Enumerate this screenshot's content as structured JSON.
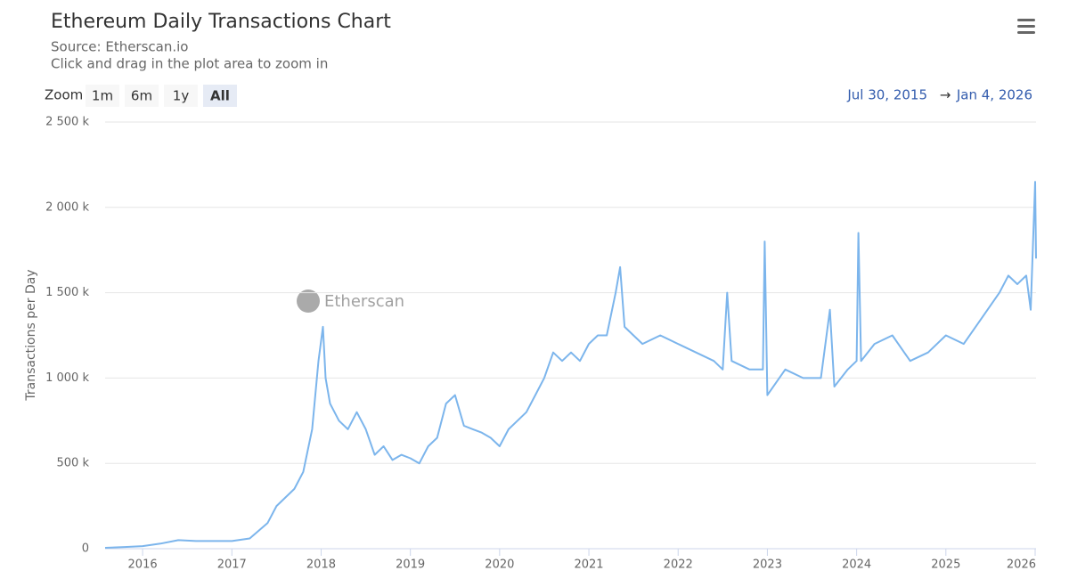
{
  "chart_data": {
    "type": "line",
    "title": "Ethereum Daily Transactions Chart",
    "subtitle": [
      "Source: Etherscan.io",
      "Click and drag in the plot area to zoom in"
    ],
    "zoom_label": "Zoom",
    "zoom_buttons": [
      "1m",
      "6m",
      "1y",
      "All"
    ],
    "range_from": "Jul 30, 2015",
    "range_separator": "→",
    "range_to": "Jan 4, 2026",
    "watermark": "Etherscan",
    "y_label": "Transactions per Day",
    "color": "#7cb5ec",
    "grid": true,
    "x": [
      2015.58,
      2015.8,
      2016.0,
      2016.2,
      2016.4,
      2016.6,
      2016.8,
      2017.0,
      2017.2,
      2017.4,
      2017.5,
      2017.6,
      2017.7,
      2017.8,
      2017.9,
      2017.97,
      2018.02,
      2018.05,
      2018.1,
      2018.2,
      2018.3,
      2018.4,
      2018.5,
      2018.6,
      2018.7,
      2018.8,
      2018.9,
      2019.0,
      2019.1,
      2019.2,
      2019.3,
      2019.4,
      2019.5,
      2019.6,
      2019.7,
      2019.8,
      2019.9,
      2020.0,
      2020.1,
      2020.2,
      2020.3,
      2020.4,
      2020.5,
      2020.6,
      2020.7,
      2020.8,
      2020.9,
      2021.0,
      2021.1,
      2021.2,
      2021.3,
      2021.35,
      2021.4,
      2021.5,
      2021.6,
      2021.8,
      2022.0,
      2022.2,
      2022.4,
      2022.5,
      2022.55,
      2022.6,
      2022.8,
      2022.95,
      2022.97,
      2023.0,
      2023.2,
      2023.4,
      2023.6,
      2023.7,
      2023.75,
      2023.9,
      2024.0,
      2024.02,
      2024.05,
      2024.2,
      2024.4,
      2024.6,
      2024.8,
      2025.0,
      2025.2,
      2025.4,
      2025.6,
      2025.7,
      2025.8,
      2025.9,
      2025.95,
      2026.0,
      2026.01
    ],
    "values": [
      5000,
      10000,
      15000,
      30000,
      50000,
      45000,
      45000,
      45000,
      60000,
      150000,
      250000,
      300000,
      350000,
      450000,
      700000,
      1100000,
      1300000,
      1000000,
      850000,
      750000,
      700000,
      800000,
      700000,
      550000,
      600000,
      520000,
      550000,
      530000,
      500000,
      600000,
      650000,
      850000,
      900000,
      720000,
      700000,
      680000,
      650000,
      600000,
      700000,
      750000,
      800000,
      900000,
      1000000,
      1150000,
      1100000,
      1150000,
      1100000,
      1200000,
      1250000,
      1250000,
      1500000,
      1650000,
      1300000,
      1250000,
      1200000,
      1250000,
      1200000,
      1150000,
      1100000,
      1050000,
      1500000,
      1100000,
      1050000,
      1050000,
      1800000,
      900000,
      1050000,
      1000000,
      1000000,
      1400000,
      950000,
      1050000,
      1100000,
      1850000,
      1100000,
      1200000,
      1250000,
      1100000,
      1150000,
      1250000,
      1200000,
      1350000,
      1500000,
      1600000,
      1550000,
      1600000,
      1400000,
      2150000,
      1700000
    ],
    "xlim": [
      2015.58,
      2026.01
    ],
    "xticks": [
      2016,
      2017,
      2018,
      2019,
      2020,
      2021,
      2022,
      2023,
      2024,
      2025,
      2026
    ],
    "ylim": [
      0,
      2500000
    ],
    "yticks": [
      0,
      {
        "value": 500000,
        "label": "500 k"
      },
      {
        "value": 1000000,
        "label": "1 000 k"
      },
      {
        "value": 1500000,
        "label": "1 500 k"
      },
      {
        "value": 2000000,
        "label": "2 000 k"
      },
      {
        "value": 2500000,
        "label": "2 500 k"
      }
    ]
  }
}
